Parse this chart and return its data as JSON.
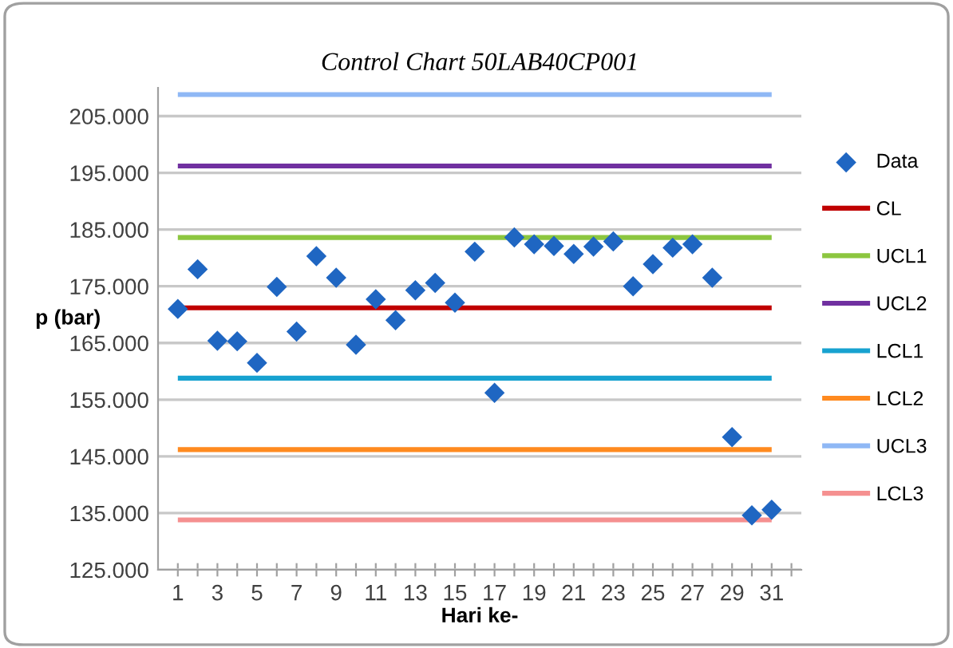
{
  "chart_data": {
    "type": "scatter",
    "title": "Control Chart 50LAB40CP001",
    "xlabel": "Hari ke-",
    "ylabel": "p (bar)",
    "x": [
      1,
      2,
      3,
      4,
      5,
      6,
      7,
      8,
      9,
      10,
      11,
      12,
      13,
      14,
      15,
      16,
      17,
      18,
      19,
      20,
      21,
      22,
      23,
      24,
      25,
      26,
      27,
      28,
      29,
      30,
      31
    ],
    "series": [
      {
        "name": "Data",
        "marker": "diamond",
        "color": "#1f66c2",
        "values": [
          171.0,
          178.0,
          165.4,
          165.3,
          161.5,
          174.9,
          167.0,
          180.3,
          176.5,
          164.7,
          172.7,
          169.0,
          174.3,
          175.6,
          172.1,
          181.1,
          156.2,
          183.6,
          182.4,
          182.1,
          180.7,
          182.0,
          182.9,
          175.0,
          178.9,
          181.8,
          182.4,
          176.5,
          148.4,
          134.6,
          135.6
        ]
      },
      {
        "name": "CL",
        "type": "line",
        "color": "#c00000",
        "values": [
          171.2,
          171.2,
          171.2,
          171.2,
          171.2,
          171.2,
          171.2,
          171.2,
          171.2,
          171.2,
          171.2,
          171.2,
          171.2,
          171.2,
          171.2,
          171.2,
          171.2,
          171.2,
          171.2,
          171.2,
          171.2,
          171.2,
          171.2,
          171.2,
          171.2,
          171.2,
          171.2,
          171.2,
          171.2,
          171.2,
          171.2
        ]
      },
      {
        "name": "UCL1",
        "type": "line",
        "color": "#8cc63f",
        "values": [
          183.6,
          183.6,
          183.6,
          183.6,
          183.6,
          183.6,
          183.6,
          183.6,
          183.6,
          183.6,
          183.6,
          183.6,
          183.6,
          183.6,
          183.6,
          183.6,
          183.6,
          183.6,
          183.6,
          183.6,
          183.6,
          183.6,
          183.6,
          183.6,
          183.6,
          183.6,
          183.6,
          183.6,
          183.6,
          183.6,
          183.6
        ]
      },
      {
        "name": "UCL2",
        "type": "line",
        "color": "#7030a0",
        "values": [
          196.2,
          196.2,
          196.2,
          196.2,
          196.2,
          196.2,
          196.2,
          196.2,
          196.2,
          196.2,
          196.2,
          196.2,
          196.2,
          196.2,
          196.2,
          196.2,
          196.2,
          196.2,
          196.2,
          196.2,
          196.2,
          196.2,
          196.2,
          196.2,
          196.2,
          196.2,
          196.2,
          196.2,
          196.2,
          196.2,
          196.2
        ]
      },
      {
        "name": "LCL1",
        "type": "line",
        "color": "#17a2d0",
        "values": [
          158.8,
          158.8,
          158.8,
          158.8,
          158.8,
          158.8,
          158.8,
          158.8,
          158.8,
          158.8,
          158.8,
          158.8,
          158.8,
          158.8,
          158.8,
          158.8,
          158.8,
          158.8,
          158.8,
          158.8,
          158.8,
          158.8,
          158.8,
          158.8,
          158.8,
          158.8,
          158.8,
          158.8,
          158.8,
          158.8,
          158.8
        ]
      },
      {
        "name": "LCL2",
        "type": "line",
        "color": "#ff8a1f",
        "values": [
          146.2,
          146.2,
          146.2,
          146.2,
          146.2,
          146.2,
          146.2,
          146.2,
          146.2,
          146.2,
          146.2,
          146.2,
          146.2,
          146.2,
          146.2,
          146.2,
          146.2,
          146.2,
          146.2,
          146.2,
          146.2,
          146.2,
          146.2,
          146.2,
          146.2,
          146.2,
          146.2,
          146.2,
          146.2,
          146.2,
          146.2
        ]
      },
      {
        "name": "UCL3",
        "type": "line",
        "color": "#8fb8f5",
        "values": [
          208.8,
          208.8,
          208.8,
          208.8,
          208.8,
          208.8,
          208.8,
          208.8,
          208.8,
          208.8,
          208.8,
          208.8,
          208.8,
          208.8,
          208.8,
          208.8,
          208.8,
          208.8,
          208.8,
          208.8,
          208.8,
          208.8,
          208.8,
          208.8,
          208.8,
          208.8,
          208.8,
          208.8,
          208.8,
          208.8,
          208.8
        ]
      },
      {
        "name": "LCL3",
        "type": "line",
        "color": "#f59090",
        "values": [
          133.8,
          133.8,
          133.8,
          133.8,
          133.8,
          133.8,
          133.8,
          133.8,
          133.8,
          133.8,
          133.8,
          133.8,
          133.8,
          133.8,
          133.8,
          133.8,
          133.8,
          133.8,
          133.8,
          133.8,
          133.8,
          133.8,
          133.8,
          133.8,
          133.8,
          133.8,
          133.8,
          133.8,
          133.8,
          133.8,
          133.8
        ]
      }
    ],
    "xlim": [
      0,
      32.5
    ],
    "xticks": [
      1,
      {
        "value": 2,
        "label": null
      },
      3,
      {
        "value": 4,
        "label": null
      },
      5,
      {
        "value": 6,
        "label": null
      },
      7,
      {
        "value": 8,
        "label": null
      },
      9,
      {
        "value": 10,
        "label": null
      },
      11,
      {
        "value": 12,
        "label": null
      },
      13,
      {
        "value": 14,
        "label": null
      },
      15,
      {
        "value": 16,
        "label": null
      },
      17,
      {
        "value": 18,
        "label": null
      },
      19,
      {
        "value": 20,
        "label": null
      },
      21,
      {
        "value": 22,
        "label": null
      },
      23,
      {
        "value": 24,
        "label": null
      },
      25,
      {
        "value": 26,
        "label": null
      },
      27,
      {
        "value": 28,
        "label": null
      },
      29,
      {
        "value": 30,
        "label": null
      },
      31,
      {
        "value": 32,
        "label": null
      }
    ],
    "ylim": [
      125,
      210
    ],
    "yticks": [
      {
        "value": 125,
        "label": "125.000"
      },
      {
        "value": 135,
        "label": "135.000"
      },
      {
        "value": 145,
        "label": "145.000"
      },
      {
        "value": 155,
        "label": "155.000"
      },
      {
        "value": 165,
        "label": "165.000"
      },
      {
        "value": 175,
        "label": "175.000"
      },
      {
        "value": 185,
        "label": "185.000"
      },
      {
        "value": 195,
        "label": "195.000"
      },
      {
        "value": 205,
        "label": "205.000"
      }
    ],
    "grid": "y",
    "legend": "right"
  }
}
